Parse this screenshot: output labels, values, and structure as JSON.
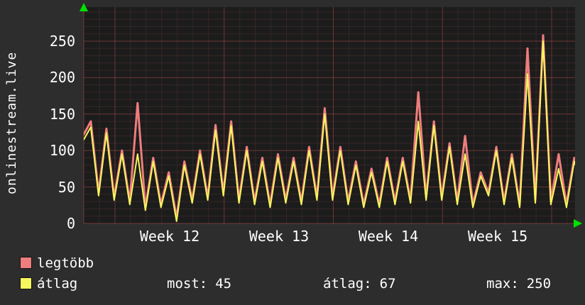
{
  "chart_data": {
    "type": "line",
    "title": "onlinestream.live",
    "y_axis": {
      "ticks": [
        "0",
        "50",
        "100",
        "150",
        "200",
        "250"
      ],
      "range": [
        0,
        296
      ]
    },
    "x_axis": {
      "labels": [
        "Week 12",
        "Week 13",
        "Week 14",
        "Week 15"
      ]
    },
    "x_days": 31.5,
    "week_start_days": [
      2,
      9,
      16,
      23,
      30
    ],
    "grid": "on",
    "legend_position": "bottom-left",
    "colors": {
      "bg": "#2d2d2d",
      "plot_bg": "#1c1c1c",
      "grid_minor": "rgba(215,95,95,0.14)",
      "grid_major": "rgba(225,85,85,0.42)",
      "arrow": "#00e000",
      "text": "#ffffff"
    },
    "series": [
      {
        "name": "legtöbb",
        "color": "#ee7d7d",
        "start": 122,
        "day_peak": [
          140,
          130,
          100,
          165,
          90,
          70,
          85,
          100,
          135,
          140,
          105,
          90,
          95,
          90,
          105,
          158,
          105,
          85,
          75,
          90,
          90,
          180,
          140,
          110,
          120,
          70,
          105,
          95,
          240,
          258,
          95,
          90
        ],
        "day_trough": [
          42,
          36,
          30,
          22,
          26,
          8,
          32,
          36,
          42,
          32,
          30,
          26,
          32,
          30,
          36,
          36,
          30,
          26,
          26,
          30,
          32,
          36,
          36,
          30,
          26,
          42,
          30,
          26,
          32,
          30,
          26,
          58
        ]
      },
      {
        "name": "átlag",
        "color": "#f6f65e",
        "start": 115,
        "day_peak": [
          132,
          124,
          95,
          95,
          85,
          65,
          80,
          95,
          128,
          134,
          100,
          85,
          90,
          85,
          100,
          150,
          100,
          80,
          70,
          85,
          85,
          140,
          134,
          105,
          95,
          65,
          100,
          90,
          205,
          250,
          75,
          85
        ],
        "day_trough": [
          38,
          32,
          26,
          18,
          22,
          3,
          28,
          32,
          38,
          28,
          26,
          22,
          28,
          26,
          32,
          32,
          26,
          22,
          22,
          26,
          28,
          32,
          32,
          26,
          22,
          38,
          26,
          22,
          28,
          26,
          22,
          54
        ]
      }
    ],
    "stats": [
      {
        "label": "most:",
        "value": "45"
      },
      {
        "label": "átlag:",
        "value": "67"
      },
      {
        "label": "max:",
        "value": "250"
      }
    ]
  }
}
